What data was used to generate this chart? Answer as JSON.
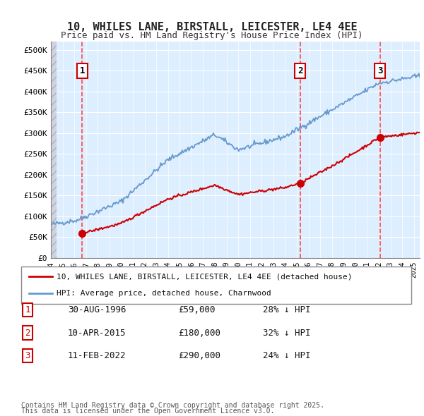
{
  "title": "10, WHILES LANE, BIRSTALL, LEICESTER, LE4 4EE",
  "subtitle": "Price paid vs. HM Land Registry's House Price Index (HPI)",
  "ylabel_ticks": [
    0,
    50000,
    100000,
    150000,
    200000,
    250000,
    300000,
    350000,
    400000,
    450000,
    500000
  ],
  "ylabel_labels": [
    "£0",
    "£50K",
    "£100K",
    "£150K",
    "£200K",
    "£250K",
    "£300K",
    "£350K",
    "£400K",
    "£450K",
    "£500K"
  ],
  "xmin": 1994.0,
  "xmax": 2025.5,
  "ymin": 0,
  "ymax": 520000,
  "transactions": [
    {
      "date_num": 1996.667,
      "price": 59000,
      "label": "1"
    },
    {
      "date_num": 2015.274,
      "price": 180000,
      "label": "2"
    },
    {
      "date_num": 2022.115,
      "price": 290000,
      "label": "3"
    }
  ],
  "transaction_info": [
    {
      "num": "1",
      "date": "30-AUG-1996",
      "price": "£59,000",
      "hpi": "28% ↓ HPI"
    },
    {
      "num": "2",
      "date": "10-APR-2015",
      "price": "£180,000",
      "hpi": "32% ↓ HPI"
    },
    {
      "num": "3",
      "date": "11-FEB-2022",
      "price": "£290,000",
      "hpi": "24% ↓ HPI"
    }
  ],
  "legend_line1": "10, WHILES LANE, BIRSTALL, LEICESTER, LE4 4EE (detached house)",
  "legend_line2": "HPI: Average price, detached house, Charnwood",
  "footer1": "Contains HM Land Registry data © Crown copyright and database right 2025.",
  "footer2": "This data is licensed under the Open Government Licence v3.0.",
  "plot_bg_color": "#ddeeff",
  "hatch_color": "#ccccdd",
  "red_line_color": "#cc0000",
  "blue_line_color": "#6699cc",
  "grid_color": "#ffffff",
  "dashed_line_color": "#ff4444"
}
